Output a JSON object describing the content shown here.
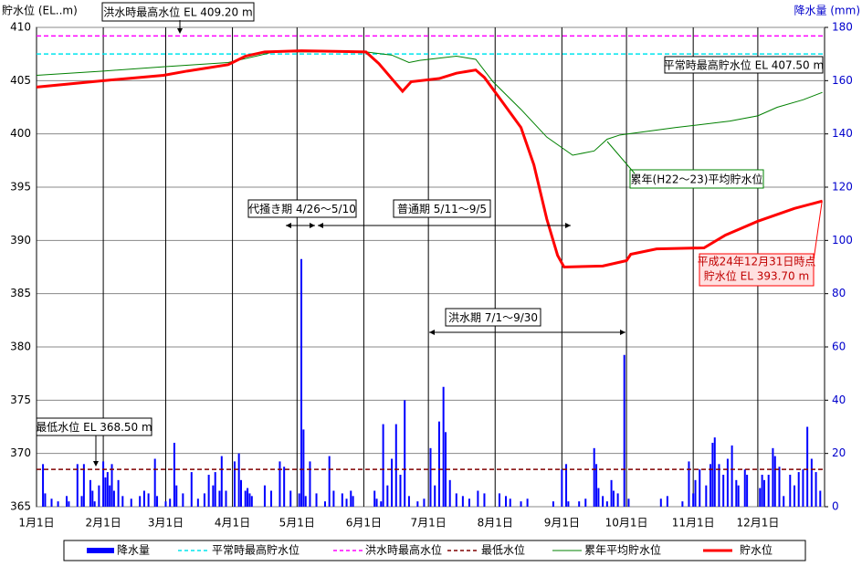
{
  "chart_data": {
    "type": "combo",
    "y_label": "貯水位 (EL..m)",
    "y2_label": "降水量 (mm)",
    "xlim": [
      0,
      366
    ],
    "xticks": [
      {
        "value": 0,
        "label": "1月1日"
      },
      {
        "value": 31,
        "label": "2月1日"
      },
      {
        "value": 60,
        "label": "3月1日"
      },
      {
        "value": 91,
        "label": "4月1日"
      },
      {
        "value": 121,
        "label": "5月1日"
      },
      {
        "value": 152,
        "label": "6月1日"
      },
      {
        "value": 182,
        "label": "7月1日"
      },
      {
        "value": 213,
        "label": "8月1日"
      },
      {
        "value": 244,
        "label": "9月1日"
      },
      {
        "value": 274,
        "label": "10月1日"
      },
      {
        "value": 305,
        "label": "11月1日"
      },
      {
        "value": 335,
        "label": "12月1日"
      }
    ],
    "ylim": [
      365,
      410
    ],
    "yticks": [
      365,
      370,
      375,
      380,
      385,
      390,
      395,
      400,
      405,
      410
    ],
    "y2lim": [
      0,
      180
    ],
    "y2ticks": [
      0,
      20,
      40,
      60,
      80,
      100,
      120,
      140,
      160,
      180
    ],
    "grid": true,
    "series": [
      {
        "name": "降水量",
        "type": "bar",
        "axis": "y2",
        "color": "#0000ff",
        "x": [
          3,
          4,
          7,
          10,
          14,
          15,
          19,
          21,
          22,
          25,
          26,
          27,
          29,
          31,
          32,
          33,
          34,
          35,
          36,
          38,
          40,
          44,
          48,
          50,
          52,
          55,
          56,
          60,
          62,
          64,
          65,
          68,
          72,
          75,
          78,
          80,
          82,
          83,
          85,
          86,
          88,
          92,
          94,
          95,
          97,
          98,
          99,
          100,
          106,
          109,
          113,
          115,
          118,
          122,
          123,
          124,
          125,
          127,
          130,
          134,
          136,
          138,
          142,
          144,
          146,
          147,
          157,
          158,
          160,
          161,
          163,
          165,
          167,
          169,
          171,
          173,
          177,
          180,
          183,
          185,
          187,
          189,
          190,
          192,
          195,
          198,
          201,
          205,
          208,
          215,
          218,
          220,
          225,
          228,
          240,
          244,
          246,
          247,
          252,
          255,
          259,
          260,
          261,
          263,
          265,
          267,
          268,
          270,
          273,
          275,
          290,
          293,
          300,
          303,
          305,
          306,
          308,
          311,
          313,
          314,
          315,
          317,
          319,
          321,
          323,
          325,
          326,
          329,
          330,
          336,
          337,
          338,
          340,
          342,
          343,
          345,
          347,
          350,
          352,
          354,
          356,
          358,
          360,
          362,
          364
        ],
        "values": [
          16,
          5,
          3,
          2,
          4,
          2,
          16,
          4,
          16,
          10,
          6,
          2,
          8,
          17,
          11,
          13,
          8,
          16,
          6,
          10,
          4,
          3,
          4,
          6,
          5,
          18,
          4,
          2,
          3,
          24,
          8,
          5,
          13,
          3,
          5,
          12,
          8,
          13,
          6,
          19,
          6,
          17,
          20,
          10,
          6,
          7,
          5,
          4,
          8,
          6,
          17,
          15,
          6,
          5,
          93,
          29,
          4,
          17,
          5,
          2,
          19,
          6,
          5,
          3,
          6,
          4,
          6,
          3,
          2,
          31,
          8,
          18,
          31,
          12,
          40,
          4,
          2,
          3,
          22,
          8,
          32,
          45,
          28,
          10,
          5,
          4,
          3,
          6,
          5,
          5,
          4,
          3,
          2,
          3,
          2,
          14,
          16,
          2,
          2,
          3,
          22,
          16,
          7,
          4,
          2,
          10,
          6,
          5,
          57,
          3,
          3,
          4,
          2,
          17,
          5,
          10,
          14,
          8,
          16,
          24,
          26,
          16,
          12,
          18,
          23,
          10,
          8,
          14,
          12,
          7,
          12,
          10,
          12,
          22,
          19,
          15,
          4,
          12,
          8,
          13,
          14,
          30,
          18,
          13,
          6
        ]
      },
      {
        "name": "平常時最高貯水位",
        "type": "hline",
        "color": "#00e5ee",
        "value": 407.5
      },
      {
        "name": "洪水時最高水位",
        "type": "hline",
        "color": "#ff00ff",
        "value": 409.2
      },
      {
        "name": "最低水位",
        "type": "hline",
        "color": "#800000",
        "value": 368.5
      },
      {
        "name": "累年平均貯水位",
        "type": "line",
        "color": "#008000",
        "x": [
          0,
          31,
          59,
          89,
          104,
          110,
          153,
          165,
          173,
          178,
          195,
          204,
          212,
          225,
          237,
          249,
          259,
          265,
          271,
          297,
          322,
          335,
          344,
          356,
          365
        ],
        "values": [
          405.5,
          405.9,
          406.3,
          406.7,
          407.4,
          407.7,
          407.7,
          407.4,
          406.7,
          406.9,
          407.3,
          407.0,
          404.9,
          402.3,
          399.7,
          398.0,
          398.4,
          399.5,
          399.9,
          400.6,
          401.2,
          401.7,
          402.5,
          403.2,
          403.9
        ]
      },
      {
        "name": "貯水位",
        "type": "line",
        "color": "#ff0000",
        "x": [
          0,
          31,
          59,
          70,
          89,
          97,
          106,
          123,
          153,
          159,
          170,
          174,
          187,
          195,
          204,
          208,
          216,
          225,
          231,
          237,
          242,
          245,
          263,
          274,
          276,
          288,
          310,
          320,
          335,
          352,
          365
        ],
        "values": [
          404.4,
          405.0,
          405.5,
          405.9,
          406.5,
          407.3,
          407.7,
          407.8,
          407.7,
          406.6,
          404.0,
          404.9,
          405.2,
          405.7,
          406.0,
          405.3,
          403.1,
          400.6,
          397.1,
          392.0,
          388.6,
          387.5,
          387.6,
          388.1,
          388.7,
          389.2,
          389.3,
          390.5,
          391.8,
          393.0,
          393.7
        ]
      }
    ],
    "annotations": [
      [
        "洪水時最高水位 EL 409.20 m"
      ],
      [
        "平常時最高貯水位 EL 407.50 m"
      ],
      [
        "最低水位 EL 368.50 m"
      ],
      [
        "累年(H22～23)平均貯水位"
      ],
      [
        "平成24年12月31日時点",
        "貯水位 EL 393.70 m"
      ],
      [
        "代掻き期 4/26～5/10"
      ],
      [
        "普通期 5/11～9/5"
      ],
      [
        "洪水期 7/1～9/30"
      ]
    ]
  }
}
